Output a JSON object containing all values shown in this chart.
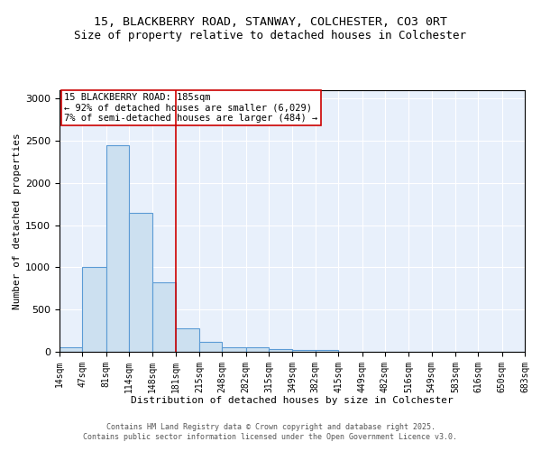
{
  "title_line1": "15, BLACKBERRY ROAD, STANWAY, COLCHESTER, CO3 0RT",
  "title_line2": "Size of property relative to detached houses in Colchester",
  "xlabel": "Distribution of detached houses by size in Colchester",
  "ylabel": "Number of detached properties",
  "bin_edges": [
    14,
    47,
    81,
    114,
    148,
    181,
    215,
    248,
    282,
    315,
    349,
    382,
    415,
    449,
    482,
    516,
    549,
    583,
    616,
    650,
    683
  ],
  "bar_heights": [
    50,
    1000,
    2450,
    1650,
    820,
    280,
    120,
    50,
    50,
    35,
    20,
    20,
    0,
    0,
    0,
    0,
    0,
    0,
    0,
    0
  ],
  "bar_facecolor": "#cce0f0",
  "bar_edgecolor": "#5b9bd5",
  "bar_linewidth": 0.8,
  "vline_x": 181,
  "vline_color": "#cc0000",
  "vline_linewidth": 1.2,
  "ylim": [
    0,
    3100
  ],
  "yticks": [
    0,
    500,
    1000,
    1500,
    2000,
    2500,
    3000
  ],
  "annotation_text": "15 BLACKBERRY ROAD: 185sqm\n← 92% of detached houses are smaller (6,029)\n7% of semi-detached houses are larger (484) →",
  "annotation_box_facecolor": "#ffffff",
  "annotation_box_edgecolor": "#cc0000",
  "annotation_fontsize": 7.5,
  "footnote_line1": "Contains HM Land Registry data © Crown copyright and database right 2025.",
  "footnote_line2": "Contains public sector information licensed under the Open Government Licence v3.0.",
  "background_color": "#e8f0fb",
  "title_fontsize": 9.5,
  "subtitle_fontsize": 9,
  "tick_label_fontsize": 7,
  "axis_label_fontsize": 8
}
